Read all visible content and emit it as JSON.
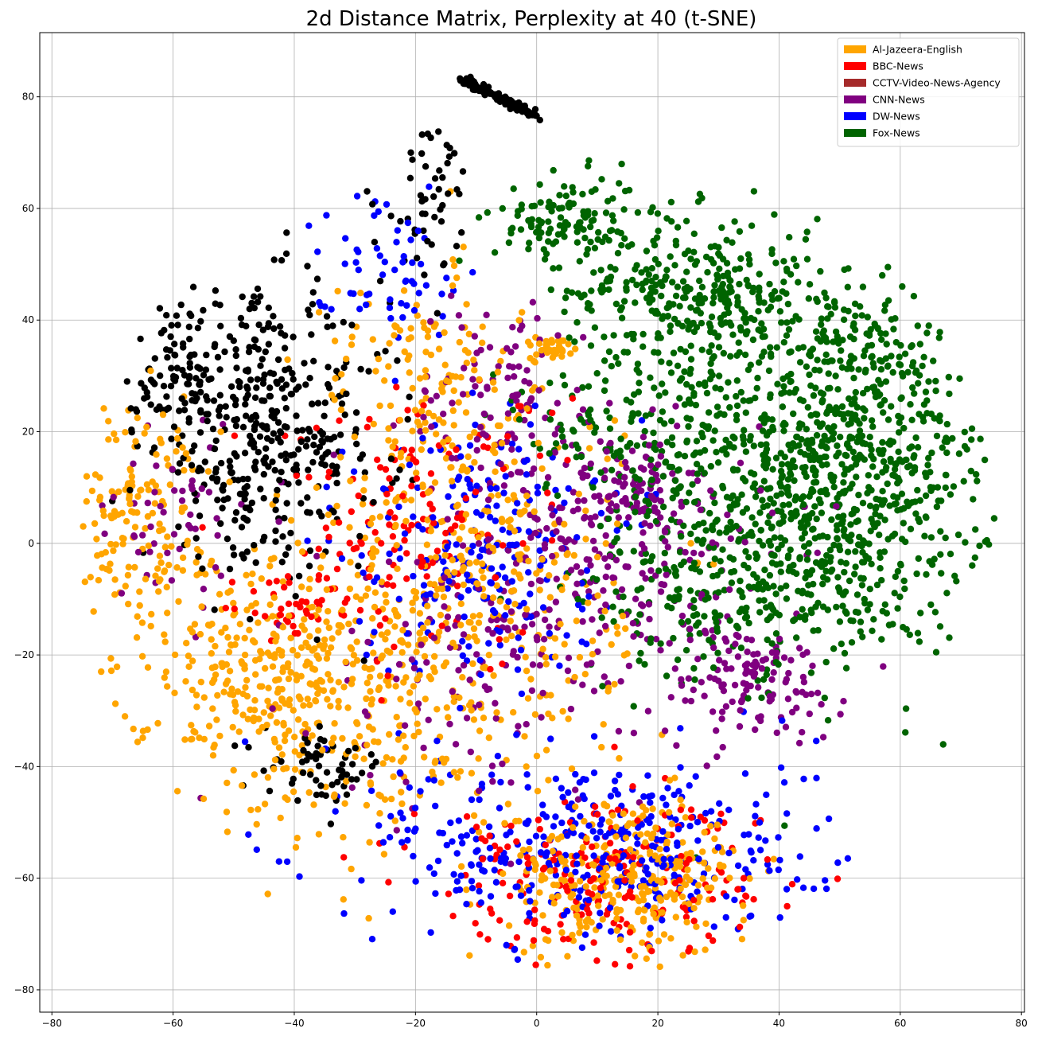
{
  "chart_data": {
    "type": "scatter",
    "title": "2d Distance Matrix, Perplexity at 40 (t-SNE)",
    "xlabel": "",
    "ylabel": "",
    "xlim": [
      -82,
      80.5
    ],
    "ylim": [
      -84,
      91.5
    ],
    "xticks": [
      -80,
      -60,
      -40,
      -20,
      0,
      20,
      40,
      60,
      80
    ],
    "yticks": [
      -80,
      -60,
      -40,
      -20,
      0,
      20,
      40,
      60,
      80
    ],
    "grid": true,
    "legend_position": "top-right",
    "legend": [
      {
        "label": "Al-Jazeera-English",
        "color": "#ffa500"
      },
      {
        "label": "BBC-News",
        "color": "#ff0000"
      },
      {
        "label": "CCTV-Video-News-Agency",
        "color": "#a52a2a"
      },
      {
        "label": "CNN-News",
        "color": "#800080"
      },
      {
        "label": "DW-News",
        "color": "#0000ff"
      },
      {
        "label": "Fox-News",
        "color": "#006400"
      }
    ],
    "unlabeled_series_color": "#000000",
    "clusters": [
      {
        "color": "#006400",
        "cx": 48,
        "cy": 15,
        "sx": 14,
        "sy": 17,
        "n": 1100
      },
      {
        "color": "#006400",
        "cx": 25,
        "cy": 45,
        "sx": 10,
        "sy": 7,
        "n": 300
      },
      {
        "color": "#006400",
        "cx": 5,
        "cy": 58,
        "sx": 6,
        "sy": 4,
        "n": 120
      },
      {
        "color": "#006400",
        "cx": 30,
        "cy": -8,
        "sx": 12,
        "sy": 8,
        "n": 200
      },
      {
        "color": "#006400",
        "cx": 12,
        "cy": 20,
        "sx": 8,
        "sy": 6,
        "n": 100
      },
      {
        "color": "#800080",
        "cx": 15,
        "cy": -5,
        "sx": 12,
        "sy": 10,
        "n": 180
      },
      {
        "color": "#800080",
        "cx": 35,
        "cy": -25,
        "sx": 8,
        "sy": 5,
        "n": 120
      },
      {
        "color": "#800080",
        "cx": -5,
        "cy": 25,
        "sx": 8,
        "sy": 10,
        "n": 110
      },
      {
        "color": "#800080",
        "cx": 15,
        "cy": 10,
        "sx": 6,
        "sy": 5,
        "n": 100
      },
      {
        "color": "#800080",
        "cx": -10,
        "cy": -20,
        "sx": 15,
        "sy": 15,
        "n": 140
      },
      {
        "color": "#800080",
        "cx": -60,
        "cy": 5,
        "sx": 8,
        "sy": 8,
        "n": 50
      },
      {
        "color": "#000000",
        "cx": -45,
        "cy": 20,
        "sx": 10,
        "sy": 12,
        "n": 420
      },
      {
        "color": "#000000",
        "cx": -60,
        "cy": 30,
        "sx": 3,
        "sy": 6,
        "n": 70
      },
      {
        "color": "#000000",
        "cx": -35,
        "cy": -40,
        "sx": 5,
        "sy": 3,
        "n": 60
      },
      {
        "color": "#000000",
        "cx": -18,
        "cy": 62,
        "sx": 4,
        "sy": 8,
        "n": 50
      },
      {
        "color": "#ffa500",
        "cx": -40,
        "cy": -25,
        "sx": 12,
        "sy": 12,
        "n": 450
      },
      {
        "color": "#ffa500",
        "cx": -10,
        "cy": -10,
        "sx": 12,
        "sy": 18,
        "n": 400
      },
      {
        "color": "#ffa500",
        "cx": 15,
        "cy": -60,
        "sx": 10,
        "sy": 7,
        "n": 300
      },
      {
        "color": "#ffa500",
        "cx": -65,
        "cy": 5,
        "sx": 6,
        "sy": 10,
        "n": 150
      },
      {
        "color": "#ffa500",
        "cx": -20,
        "cy": 30,
        "sx": 8,
        "sy": 10,
        "n": 120
      },
      {
        "color": "#ffa500",
        "cx": 3,
        "cy": 35,
        "sx": 2,
        "sy": 1,
        "n": 40
      },
      {
        "color": "#0000ff",
        "cx": 10,
        "cy": -55,
        "sx": 18,
        "sy": 9,
        "n": 380
      },
      {
        "color": "#0000ff",
        "cx": -10,
        "cy": 0,
        "sx": 10,
        "sy": 12,
        "n": 220
      },
      {
        "color": "#0000ff",
        "cx": -25,
        "cy": 50,
        "sx": 6,
        "sy": 6,
        "n": 60
      },
      {
        "color": "#ff0000",
        "cx": 10,
        "cy": -60,
        "sx": 15,
        "sy": 8,
        "n": 220
      },
      {
        "color": "#ff0000",
        "cx": -20,
        "cy": 5,
        "sx": 12,
        "sy": 12,
        "n": 150
      },
      {
        "color": "#ff0000",
        "cx": -40,
        "cy": -12,
        "sx": 6,
        "sy": 3,
        "n": 40
      }
    ],
    "arc": {
      "color": "#000000",
      "x_from": -12,
      "x_to": 0,
      "y_from": 83,
      "y_to": 76.5,
      "n": 120
    }
  }
}
